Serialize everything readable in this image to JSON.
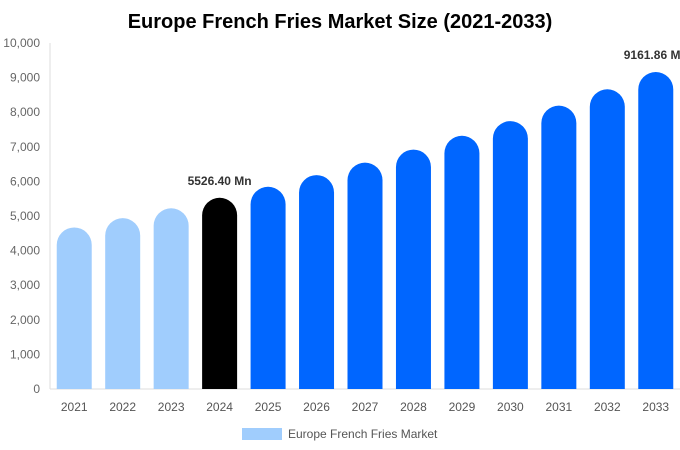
{
  "chart_data": {
    "type": "bar",
    "title": "Europe French Fries Market Size (2021-2033)",
    "categories": [
      "2021",
      "2022",
      "2023",
      "2024",
      "2025",
      "2026",
      "2027",
      "2028",
      "2029",
      "2030",
      "2031",
      "2032",
      "2033"
    ],
    "series": [
      {
        "name": "Europe French Fries Market",
        "values": [
          4669,
          4939,
          5224,
          5526.4,
          5845,
          6183,
          6541,
          6919,
          7319,
          7742,
          8190,
          8663,
          9161.86
        ]
      }
    ],
    "data_labels": {
      "3": "5526.40 Mn",
      "12": "9161.86 Mn"
    },
    "ylim": [
      0,
      10000
    ],
    "yticks": [
      "0",
      "1,000",
      "2,000",
      "3,000",
      "4,000",
      "5,000",
      "6,000",
      "7,000",
      "8,000",
      "9,000",
      "10,000"
    ],
    "grid": false,
    "legend": "bottom",
    "colors": {
      "historical": "#a0cdfd",
      "current": "#000000",
      "forecast": "#0066ff",
      "legend": "#a0cdfd"
    }
  }
}
